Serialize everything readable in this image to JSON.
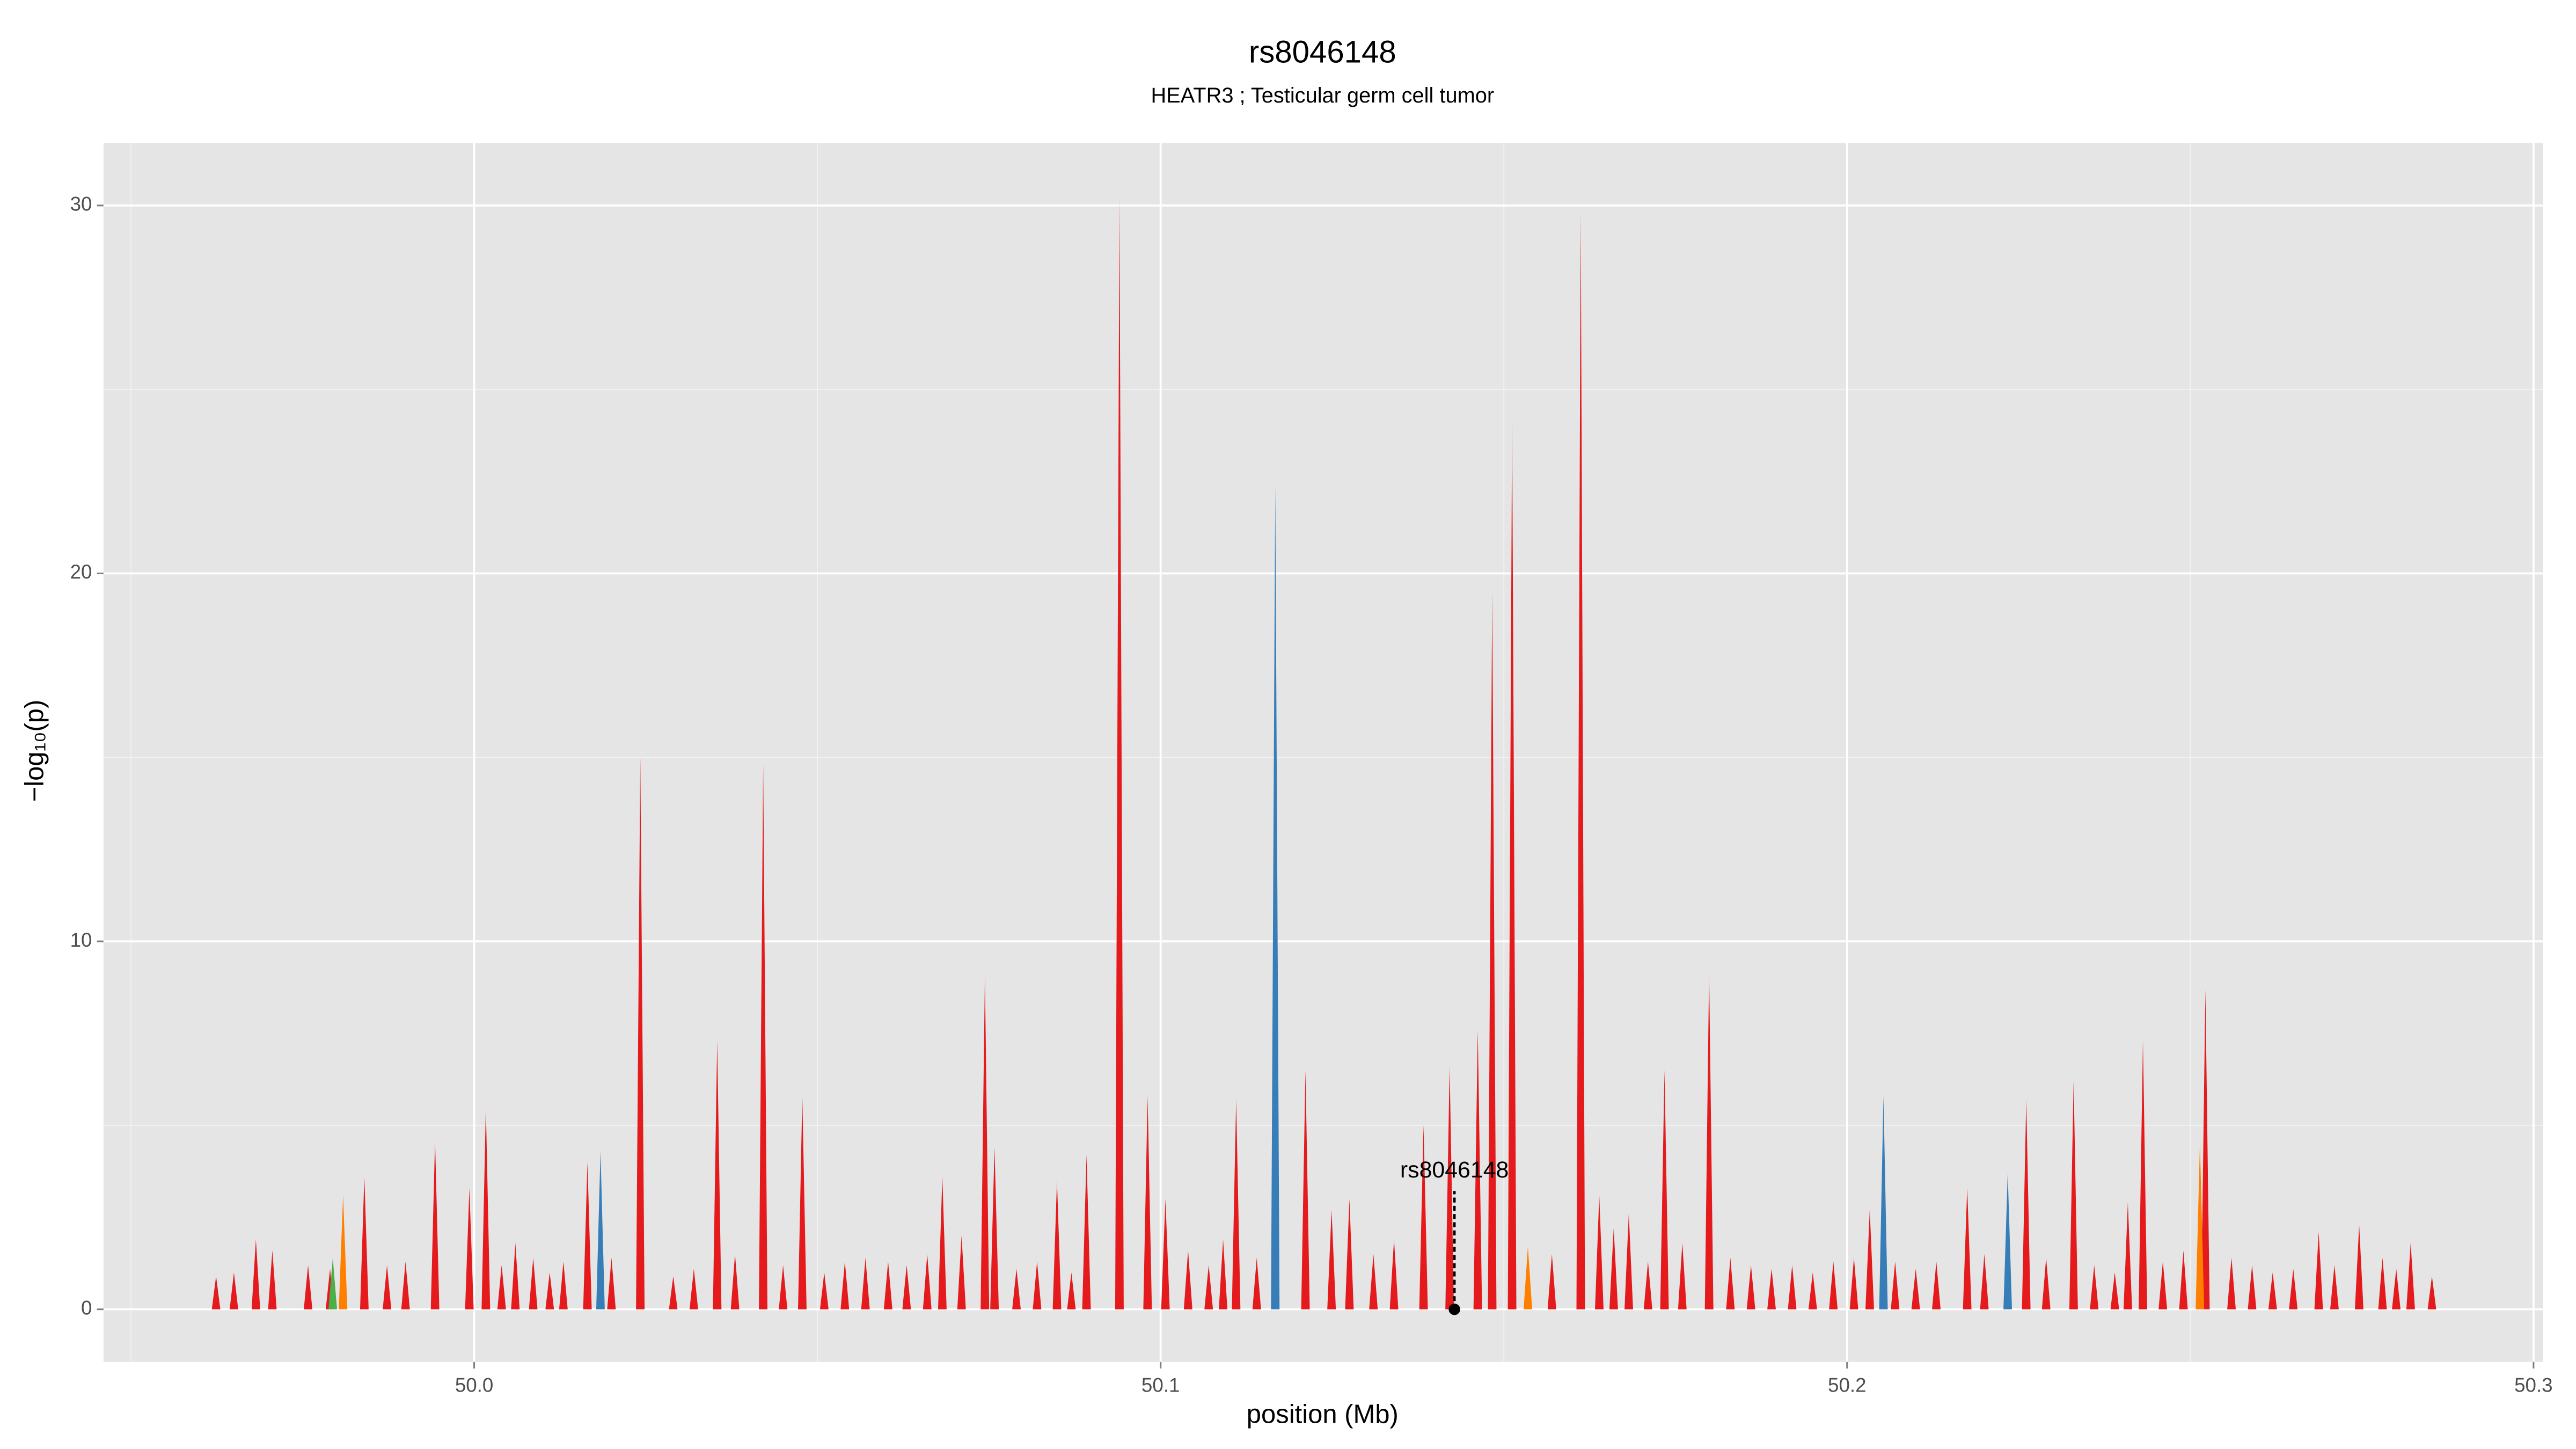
{
  "chart_data": {
    "type": "area",
    "title": "rs8046148",
    "subtitle": "HEATR3 ; Testicular germ cell tumor",
    "x_label": "position (Mb)",
    "y_label": "−log₁₀(p)",
    "xlim": [
      49.946,
      50.3014
    ],
    "ylim": [
      -1.43,
      31.7
    ],
    "xticks": [
      {
        "value": 50,
        "label": "50.0"
      },
      50.1,
      50.2,
      50.3
    ],
    "yticks": [
      0,
      10,
      20,
      30
    ],
    "grid": true,
    "series": [
      {
        "color": "#e41a1c",
        "x": [
          49.9624,
          49.9682,
          49.9706,
          49.9758,
          49.984,
          49.9873,
          49.9943,
          49.9993,
          50.0017,
          50.006,
          50.0086,
          50.0165,
          50.0242,
          50.0354,
          50.0421,
          50.0478,
          50.0603,
          50.0682,
          50.0744,
          50.0758,
          50.0849,
          50.0892,
          50.094,
          50.0981,
          50.1007,
          50.1091,
          50.111,
          50.1211,
          50.1249,
          50.1275,
          50.1383,
          50.1421,
          50.1462,
          50.1483,
          50.1512,
          50.1612,
          50.1639,
          50.1682,
          50.1734,
          50.1799,
          50.2033,
          50.2175,
          50.2261,
          50.233,
          50.2409,
          50.2431,
          50.2522,
          50.2687,
          50.2746,
          50.2821,
          50.2852,
          49.965,
          49.979,
          49.99,
          50.004,
          50.011,
          50.013,
          50.02,
          50.029,
          50.032,
          50.038,
          50.045,
          50.051,
          50.054,
          50.057,
          50.063,
          50.066,
          50.071,
          50.079,
          50.082,
          50.087,
          50.104,
          50.107,
          50.114,
          50.131,
          50.134,
          50.157,
          50.166,
          50.171,
          50.176,
          50.183,
          50.186,
          50.189,
          50.192,
          50.195,
          50.198,
          50.201,
          50.207,
          50.21,
          50.213,
          50.22,
          50.229,
          50.236,
          50.239,
          50.246,
          50.249,
          50.256,
          50.259,
          50.262,
          50.265,
          50.271,
          50.278,
          50.28
        ],
        "values": [
          0.9,
          1.9,
          1.6,
          1.2,
          3.6,
          1.2,
          4.6,
          3.3,
          5.5,
          1.8,
          1.4,
          4.0,
          15.0,
          7.3,
          14.8,
          5.8,
          1.3,
          3.6,
          9.1,
          4.4,
          3.5,
          4.2,
          30.2,
          5.8,
          3.0,
          1.9,
          5.7,
          6.5,
          2.7,
          3.0,
          5.0,
          6.6,
          7.6,
          19.5,
          24.2,
          29.8,
          3.1,
          2.6,
          6.5,
          9.2,
          2.7,
          3.3,
          5.7,
          6.2,
          2.9,
          7.3,
          8.7,
          2.1,
          2.3,
          1.8,
          0.9,
          1.0,
          1.1,
          1.3,
          1.2,
          1.0,
          1.3,
          1.4,
          0.9,
          1.1,
          1.5,
          1.2,
          1.0,
          1.3,
          1.4,
          1.2,
          1.5,
          2.0,
          1.1,
          1.3,
          1.0,
          1.6,
          1.2,
          1.4,
          1.5,
          1.9,
          1.5,
          2.2,
          1.3,
          1.8,
          1.4,
          1.2,
          1.1,
          1.2,
          1.0,
          1.3,
          1.4,
          1.3,
          1.1,
          1.3,
          1.5,
          1.4,
          1.2,
          1.0,
          1.3,
          1.6,
          1.4,
          1.2,
          1.0,
          1.1,
          1.2,
          1.4,
          1.1
        ]
      },
      {
        "color": "#ff7f00",
        "x": [
          49.9809,
          50.2514,
          50.1535
        ],
        "values": [
          3.1,
          4.5,
          1.7
        ]
      },
      {
        "color": "#4daf4a",
        "x": [
          49.9794
        ],
        "values": [
          1.4
        ]
      },
      {
        "color": "#377eb8",
        "x": [
          50.0184,
          50.1167,
          50.2053,
          50.2234
        ],
        "values": [
          4.3,
          22.4,
          5.8,
          3.7
        ]
      }
    ],
    "annotation": {
      "text": "rs8046148",
      "x": 50.1428,
      "y": 0
    }
  }
}
